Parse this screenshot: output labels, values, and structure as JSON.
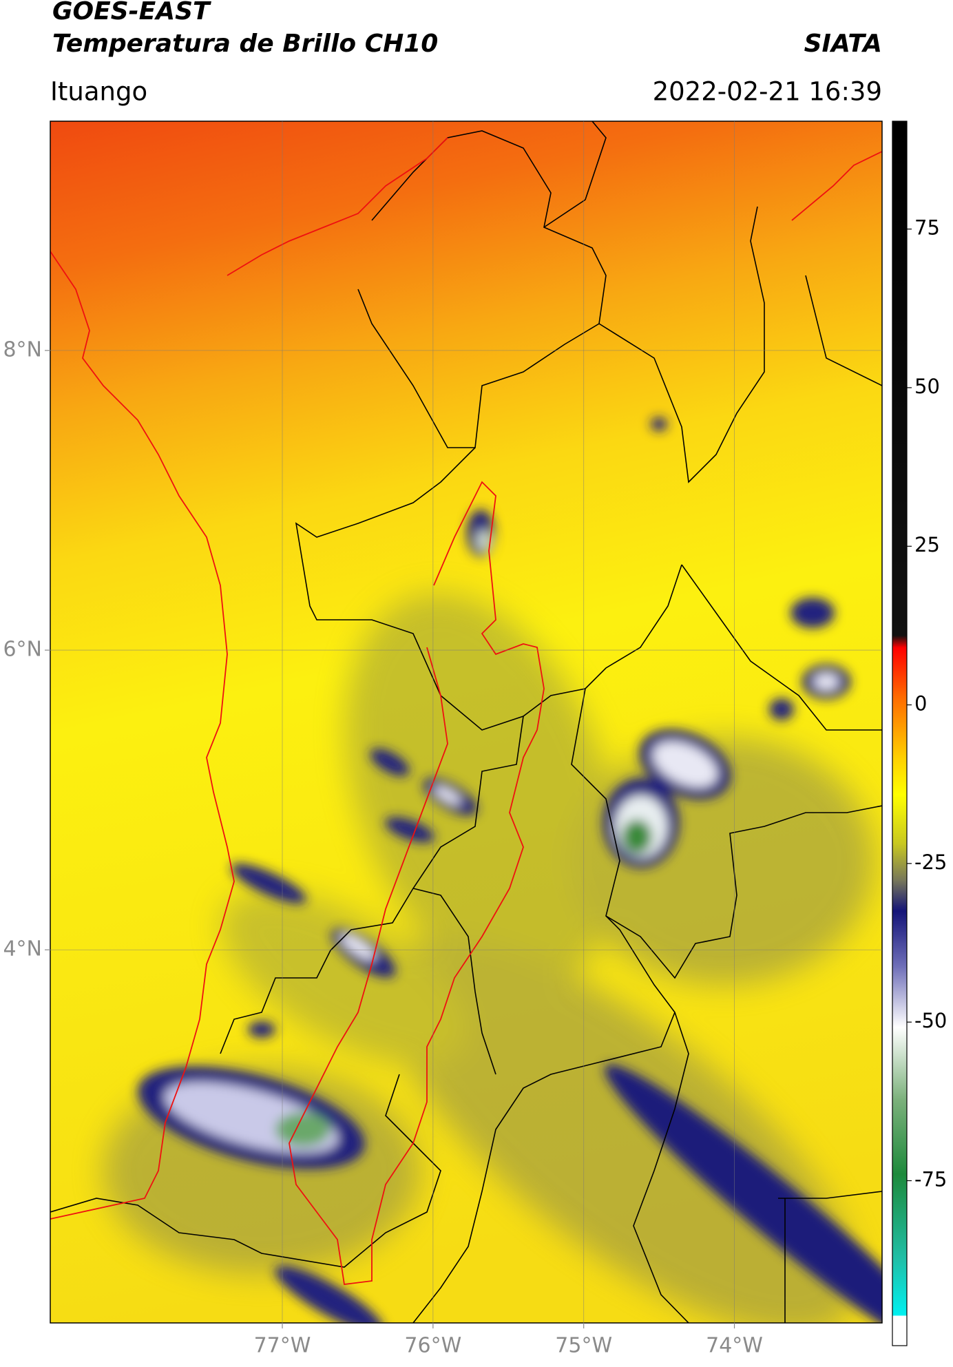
{
  "header": {
    "title": "GOES-EAST",
    "subtitle": "Temperatura de Brillo CH10",
    "source": "SIATA",
    "location": "Ituango",
    "datetime": "2022-02-21 16:39"
  },
  "map": {
    "lonlim": [
      -78.54,
      -73.02
    ],
    "latlim": [
      1.51,
      9.53
    ],
    "lonticks": [
      {
        "value": -77,
        "label": "77°W"
      },
      {
        "value": -76,
        "label": "76°W"
      },
      {
        "value": -75,
        "label": "75°W"
      },
      {
        "value": -74,
        "label": "74°W"
      }
    ],
    "latticks": [
      {
        "value": 8,
        "label": "8°N"
      },
      {
        "value": 6,
        "label": "6°N"
      },
      {
        "value": 4,
        "label": "4°N"
      }
    ]
  },
  "colorbar": {
    "lim": [
      -101,
      92
    ],
    "ticks": [
      75,
      50,
      25,
      0,
      -25,
      -50,
      -75
    ]
  }
}
